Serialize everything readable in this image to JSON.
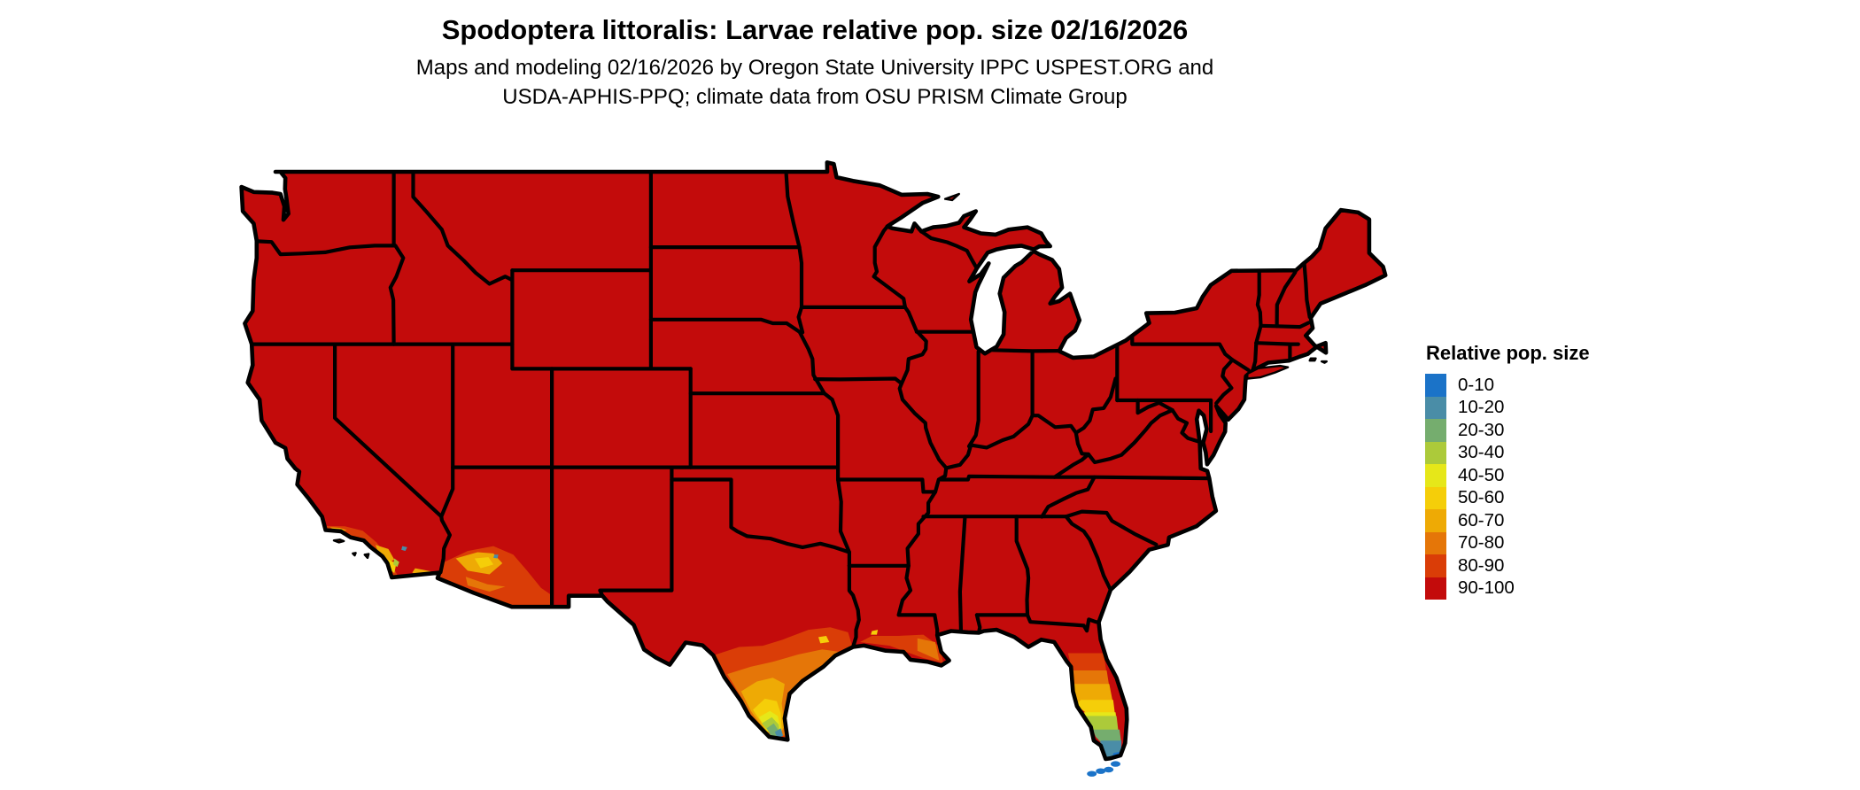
{
  "title": "Spodoptera littoralis: Larvae relative pop. size 02/16/2026",
  "subtitle": {
    "line1": "Maps and modeling 02/16/2026 by Oregon State University IPPC USPEST.ORG and",
    "line2": "USDA-APHIS-PPQ; climate data from OSU PRISM Climate Group"
  },
  "legend": {
    "title": "Relative pop. size",
    "items": [
      {
        "label": "0-10",
        "color": "#1b73c8"
      },
      {
        "label": "10-20",
        "color": "#4a8da7"
      },
      {
        "label": "20-30",
        "color": "#75ad6e"
      },
      {
        "label": "30-40",
        "color": "#acca3a"
      },
      {
        "label": "40-50",
        "color": "#e6e719"
      },
      {
        "label": "50-60",
        "color": "#f5ce09"
      },
      {
        "label": "60-70",
        "color": "#eeaa05"
      },
      {
        "label": "70-80",
        "color": "#e57608"
      },
      {
        "label": "80-90",
        "color": "#da3d07"
      },
      {
        "label": "90-100",
        "color": "#c30b0b"
      }
    ]
  },
  "map": {
    "region": "Contiguous United States",
    "base_bin": "90-100",
    "base_color": "#c30b0b",
    "border_color": "#000000",
    "water_color": "#ffffff",
    "low_value_areas": [
      "southern Florida peninsula and Keys",
      "southern Texas Rio Grande Valley and Gulf coast",
      "southern California coast",
      "southwestern Arizona",
      "Louisiana Gulf coast"
    ]
  }
}
